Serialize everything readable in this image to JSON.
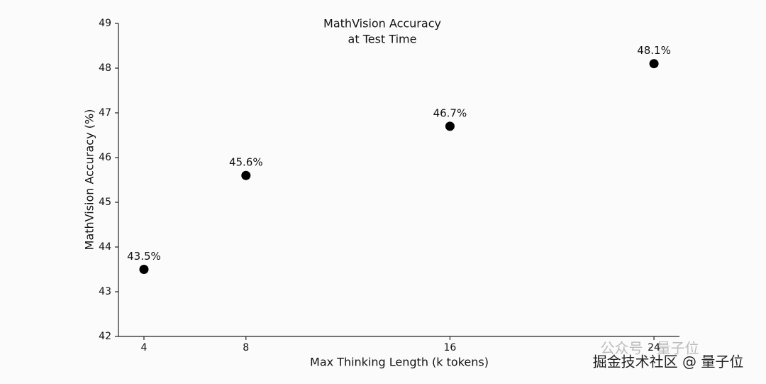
{
  "chart_data": {
    "type": "scatter",
    "title": "MathVision Accuracy",
    "subtitle": "at Test Time",
    "x_label": "Max Thinking Length (k tokens)",
    "y_label": "MathVision Accuracy (%)",
    "x": [
      4,
      8,
      16,
      24
    ],
    "values": [
      43.5,
      45.6,
      46.7,
      48.1
    ],
    "value_labels": [
      "43.5%",
      "45.6%",
      "46.7%",
      "48.1%"
    ],
    "color": "#000000",
    "xlim": [
      3,
      25
    ],
    "xticks": [
      4,
      8,
      16,
      24
    ],
    "ylim": [
      42,
      49
    ],
    "yticks": [
      42,
      43,
      44,
      45,
      46,
      47,
      48,
      49
    ],
    "grid": false
  },
  "watermark": [
    "公众号 · 量子位",
    "掘金技术社区 @ 量子位"
  ]
}
